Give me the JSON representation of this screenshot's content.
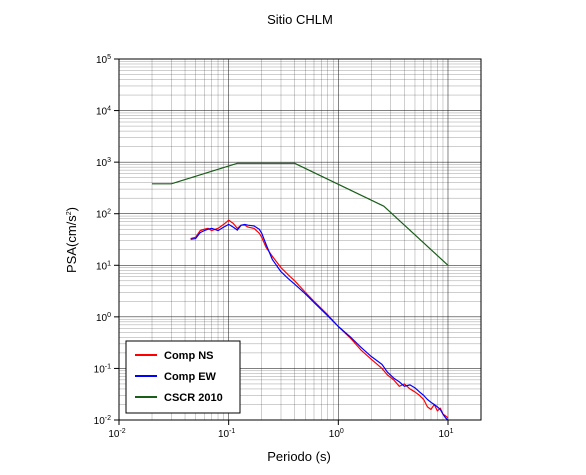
{
  "chart_data": {
    "type": "line",
    "title": "Sitio CHLM",
    "xlabel": "Periodo (s)",
    "ylabel": {
      "base": "PSA(cm/s",
      "exp": "2",
      "close": ")"
    },
    "xscale": "log",
    "yscale": "log",
    "xlim": [
      0.01,
      20
    ],
    "ylim": [
      0.01,
      100000
    ],
    "grid": true,
    "legend_position": "bottom-left",
    "x_ticks": [
      {
        "base": "10",
        "exp": "-2",
        "value": 0.01
      },
      {
        "base": "10",
        "exp": "-1",
        "value": 0.1
      },
      {
        "base": "10",
        "exp": "0",
        "value": 1
      },
      {
        "base": "10",
        "exp": "1",
        "value": 10
      }
    ],
    "y_ticks": [
      {
        "base": "10",
        "exp": "-2",
        "value": 0.01
      },
      {
        "base": "10",
        "exp": "-1",
        "value": 0.1
      },
      {
        "base": "10",
        "exp": "0",
        "value": 1
      },
      {
        "base": "10",
        "exp": "1",
        "value": 10
      },
      {
        "base": "10",
        "exp": "2",
        "value": 100
      },
      {
        "base": "10",
        "exp": "3",
        "value": 1000
      },
      {
        "base": "10",
        "exp": "4",
        "value": 10000
      },
      {
        "base": "10",
        "exp": "5",
        "value": 100000
      }
    ],
    "series": [
      {
        "name": "Comp NS",
        "color": "#ff0000",
        "points": [
          [
            0.045,
            33
          ],
          [
            0.05,
            35
          ],
          [
            0.055,
            47
          ],
          [
            0.06,
            50
          ],
          [
            0.065,
            52
          ],
          [
            0.07,
            47
          ],
          [
            0.08,
            52
          ],
          [
            0.09,
            62
          ],
          [
            0.1,
            75
          ],
          [
            0.11,
            65
          ],
          [
            0.12,
            52
          ],
          [
            0.13,
            60
          ],
          [
            0.14,
            60
          ],
          [
            0.15,
            55
          ],
          [
            0.17,
            52
          ],
          [
            0.19,
            42
          ],
          [
            0.2,
            35
          ],
          [
            0.22,
            22
          ],
          [
            0.25,
            15
          ],
          [
            0.3,
            9
          ],
          [
            0.35,
            6.5
          ],
          [
            0.4,
            5
          ],
          [
            0.5,
            3
          ],
          [
            0.6,
            2
          ],
          [
            0.8,
            1.1
          ],
          [
            1.0,
            0.65
          ],
          [
            1.3,
            0.38
          ],
          [
            1.6,
            0.23
          ],
          [
            2.0,
            0.15
          ],
          [
            2.5,
            0.1
          ],
          [
            2.8,
            0.075
          ],
          [
            3.2,
            0.06
          ],
          [
            3.6,
            0.045
          ],
          [
            4.0,
            0.05
          ],
          [
            4.5,
            0.04
          ],
          [
            5.0,
            0.035
          ],
          [
            5.5,
            0.03
          ],
          [
            6.0,
            0.025
          ],
          [
            6.5,
            0.018
          ],
          [
            7.0,
            0.016
          ],
          [
            7.5,
            0.02
          ],
          [
            8.0,
            0.015
          ],
          [
            8.5,
            0.017
          ],
          [
            9.0,
            0.013
          ],
          [
            9.5,
            0.012
          ],
          [
            10.0,
            0.011
          ]
        ]
      },
      {
        "name": "Comp EW",
        "color": "#0000ff",
        "points": [
          [
            0.045,
            32
          ],
          [
            0.05,
            33
          ],
          [
            0.055,
            43
          ],
          [
            0.06,
            47
          ],
          [
            0.065,
            50
          ],
          [
            0.07,
            52
          ],
          [
            0.08,
            47
          ],
          [
            0.09,
            55
          ],
          [
            0.1,
            62
          ],
          [
            0.11,
            55
          ],
          [
            0.12,
            48
          ],
          [
            0.13,
            60
          ],
          [
            0.14,
            62
          ],
          [
            0.15,
            60
          ],
          [
            0.17,
            58
          ],
          [
            0.19,
            50
          ],
          [
            0.2,
            42
          ],
          [
            0.22,
            25
          ],
          [
            0.25,
            13
          ],
          [
            0.3,
            7.5
          ],
          [
            0.35,
            5.5
          ],
          [
            0.4,
            4.3
          ],
          [
            0.5,
            2.8
          ],
          [
            0.6,
            1.9
          ],
          [
            0.8,
            1.05
          ],
          [
            1.0,
            0.65
          ],
          [
            1.3,
            0.4
          ],
          [
            1.6,
            0.26
          ],
          [
            2.0,
            0.17
          ],
          [
            2.5,
            0.12
          ],
          [
            2.8,
            0.085
          ],
          [
            3.2,
            0.065
          ],
          [
            3.6,
            0.055
          ],
          [
            4.0,
            0.045
          ],
          [
            4.5,
            0.048
          ],
          [
            5.0,
            0.042
          ],
          [
            5.5,
            0.035
          ],
          [
            6.0,
            0.03
          ],
          [
            6.5,
            0.025
          ],
          [
            7.0,
            0.022
          ],
          [
            7.5,
            0.02
          ],
          [
            8.0,
            0.018
          ],
          [
            8.5,
            0.016
          ],
          [
            9.0,
            0.013
          ],
          [
            9.5,
            0.011
          ],
          [
            10.0,
            0.01
          ]
        ]
      },
      {
        "name": "CSCR 2010",
        "color": "#1a5e1a",
        "points": [
          [
            0.02,
            380
          ],
          [
            0.03,
            380
          ],
          [
            0.12,
            950
          ],
          [
            0.4,
            950
          ],
          [
            2.6,
            140
          ],
          [
            10.0,
            10
          ]
        ]
      }
    ]
  }
}
